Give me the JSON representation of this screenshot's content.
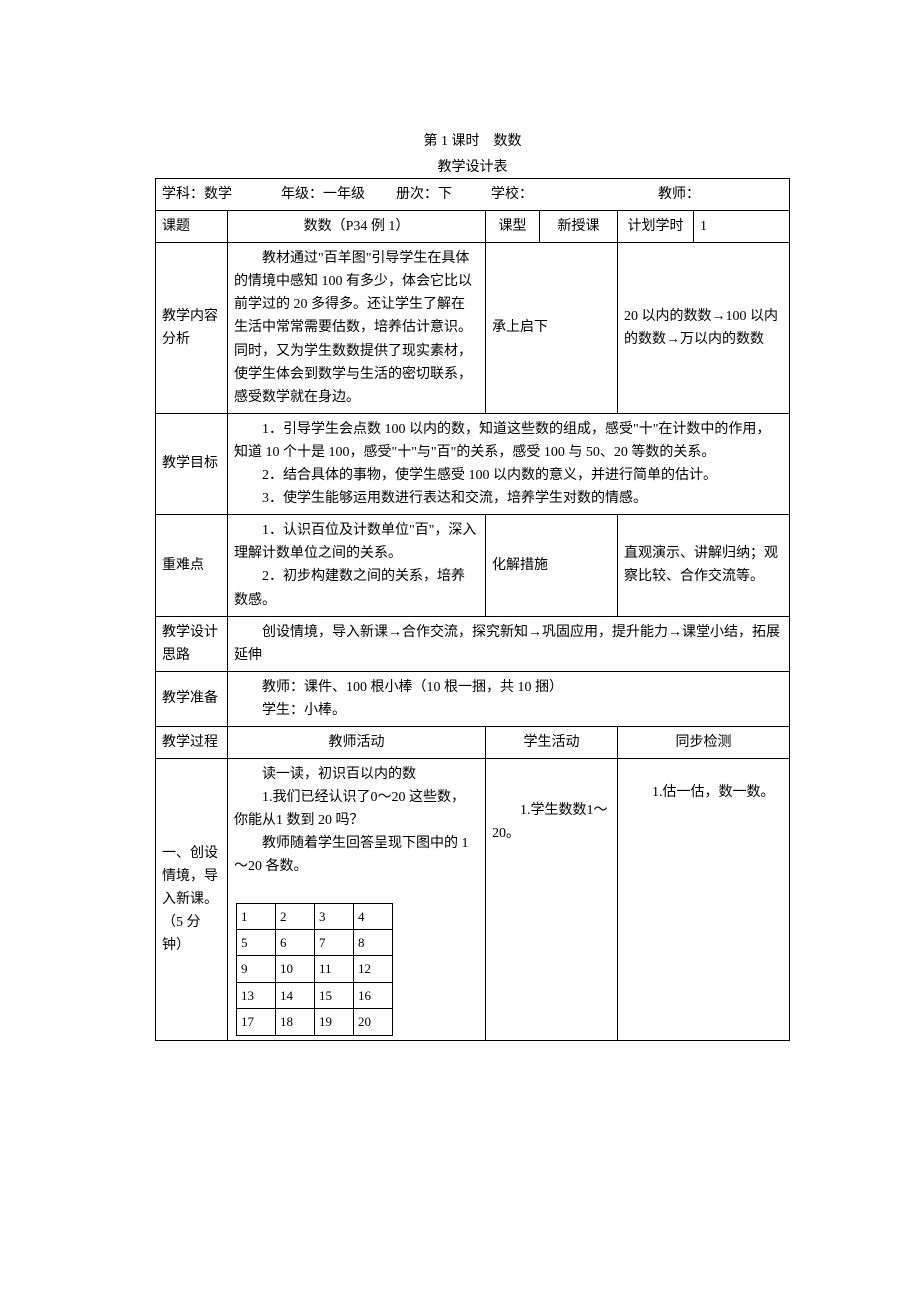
{
  "lesson_title": "第 1 课时　数数",
  "table_title": "教学设计表",
  "header": {
    "subject_label": "学科：",
    "subject_value": "数学",
    "grade_label": "年级：",
    "grade_value": "一年级",
    "volume_label": "册次：",
    "volume_value": "下",
    "school_label": "学校：",
    "teacher_label": "教师："
  },
  "row_topic": {
    "label": "课题",
    "value": "数数（P34 例 1）",
    "type_label": "课型",
    "type_value": "新授课",
    "hours_label": "计划学时",
    "hours_value": "1"
  },
  "row_content": {
    "label": "教学内容分析",
    "value": "　　教材通过\"百羊图\"引导学生在具体的情境中感知 100 有多少，体会它比以前学过的 20 多得多。还让学生了解在生活中常常需要估数，培养估计意识。同时，又为学生数数提供了现实素材，使学生体会到数学与生活的密切联系，感受数学就在身边。",
    "link_label": "承上启下",
    "link_value": "20 以内的数数→100 以内的数数→万以内的数数"
  },
  "row_goal": {
    "label": "教学目标",
    "p1": "1．引导学生会点数 100 以内的数，知道这些数的组成，感受\"十\"在计数中的作用，知道 10 个十是 100，感受\"十\"与\"百\"的关系，感受 100 与 50、20 等数的关系。",
    "p2": "2．结合具体的事物，使学生感受 100 以内数的意义，并进行简单的估计。",
    "p3": "3．使学生能够运用数进行表达和交流，培养学生对数的情感。"
  },
  "row_keypoint": {
    "label": "重难点",
    "value": "　　1．认识百位及计数单位\"百\"，深入理解计数单位之间的关系。\n　　2．初步构建数之间的关系，培养数感。",
    "resolve_label": "化解措施",
    "resolve_value": "直观演示、讲解归纳；观察比较、合作交流等。"
  },
  "row_design": {
    "label": "教学设计思路",
    "value": "　　创设情境，导入新课→合作交流，探究新知→巩固应用，提升能力→课堂小结，拓展延伸"
  },
  "row_prep": {
    "label": "教学准备",
    "teacher": "教师：课件、100 根小棒（10 根一捆，共 10 捆）",
    "student": "学生：小棒。"
  },
  "row_process_header": {
    "label": "教学过程",
    "col2": "教师活动",
    "col3": "学生活动",
    "col4": "同步检测"
  },
  "row_section1": {
    "label": "一、创设情境，导入新课。（5 分钟）",
    "teacher_heading": "读一读，初识百以内的数",
    "teacher_p1": "1.我们已经认识了0～20 这些数，你能从1 数到 20 吗？",
    "teacher_p2": "教师随着学生回答呈现下图中的 1～20 各数。",
    "student_p1": "1.学生数数1～20。",
    "check_p1": "1.估一估，数一数。",
    "grid": [
      [
        "1",
        "2",
        "3",
        "4"
      ],
      [
        "5",
        "6",
        "7",
        "8"
      ],
      [
        "9",
        "10",
        "11",
        "12"
      ],
      [
        "13",
        "14",
        "15",
        "16"
      ],
      [
        "17",
        "18",
        "19",
        "20"
      ]
    ]
  }
}
